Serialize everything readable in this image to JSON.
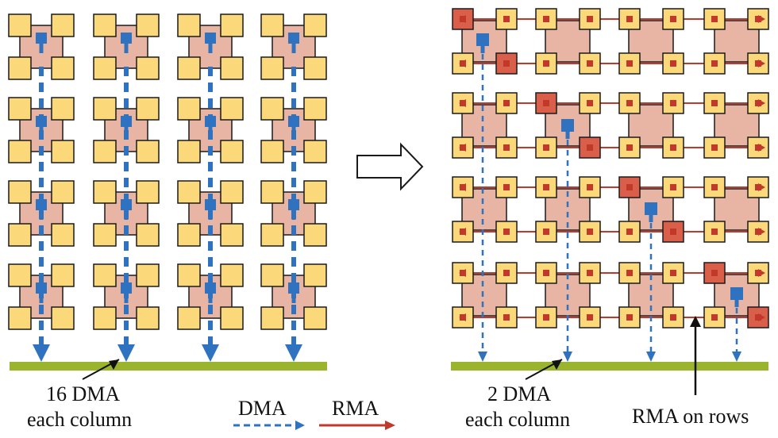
{
  "left_panel": {
    "label_line1": "16 DMA",
    "label_line2": "each column"
  },
  "right_panel": {
    "label_line1": "2 DMA",
    "label_line2": "each column",
    "rows_label": "RMA on rows"
  },
  "legend": {
    "dma_label": "DMA",
    "rma_label": "RMA"
  },
  "colors": {
    "core_fill": "#e8b5a4",
    "memory_tile": "#fbd97a",
    "dma_blue": "#2f73c0",
    "rma_red": "#c0392b",
    "rma_dark_red": "#d95f4a",
    "base_bar": "#9ab52d",
    "outline": "#1a1a1a"
  }
}
